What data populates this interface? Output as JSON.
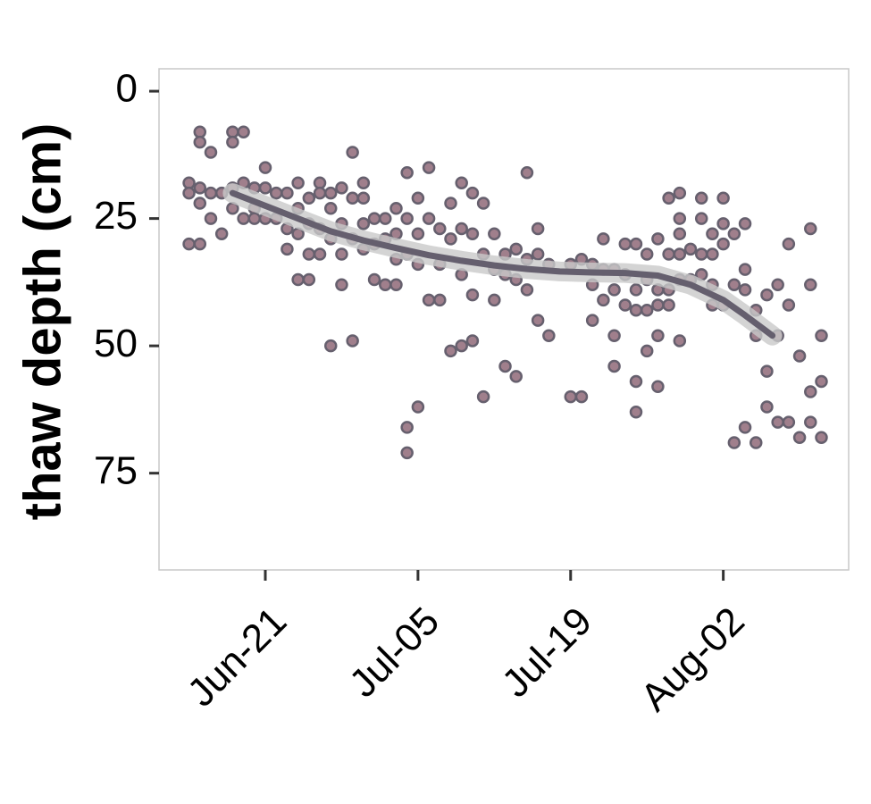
{
  "chart_data": {
    "type": "scatter",
    "y_label": "thaw depth (cm)",
    "xlim": [
      162.25,
      225.5
    ],
    "xticks": [
      {
        "value": 172,
        "label": "Jun-21"
      },
      {
        "value": 186,
        "label": "Jul-05"
      },
      {
        "value": 200,
        "label": "Jul-19"
      },
      {
        "value": 214,
        "label": "Aug-02"
      }
    ],
    "ylim": [
      -4.4,
      94
    ],
    "y_reversed": true,
    "yticks": [
      0,
      25,
      50,
      75
    ],
    "grid": false,
    "color": "#a07f8c",
    "edge_color": "#66606e",
    "x": [
      165,
      165,
      165,
      166,
      166,
      166,
      166,
      166,
      167,
      167,
      167,
      168,
      168,
      169,
      169,
      169,
      169,
      170,
      170,
      170,
      171,
      171,
      171,
      172,
      172,
      172,
      173,
      173,
      174,
      174,
      174,
      175,
      175,
      175,
      175,
      176,
      176,
      176,
      176,
      177,
      177,
      177,
      177,
      178,
      178,
      178,
      178,
      179,
      179,
      179,
      179,
      180,
      180,
      180,
      180,
      181,
      181,
      181,
      181,
      182,
      182,
      182,
      183,
      183,
      183,
      184,
      184,
      184,
      184,
      185,
      185,
      185,
      185,
      185,
      186,
      186,
      186,
      186,
      187,
      187,
      187,
      188,
      188,
      188,
      189,
      189,
      189,
      190,
      190,
      190,
      190,
      191,
      191,
      191,
      191,
      192,
      192,
      192,
      193,
      193,
      193,
      194,
      194,
      194,
      195,
      195,
      195,
      196,
      196,
      196,
      197,
      197,
      197,
      198,
      198,
      200,
      200,
      201,
      201,
      202,
      202,
      202,
      203,
      203,
      203,
      204,
      204,
      204,
      204,
      205,
      205,
      205,
      206,
      206,
      206,
      206,
      206,
      207,
      207,
      207,
      207,
      208,
      208,
      208,
      208,
      208,
      209,
      209,
      209,
      209,
      210,
      210,
      210,
      210,
      210,
      210,
      211,
      211,
      212,
      212,
      212,
      212,
      213,
      213,
      213,
      213,
      214,
      214,
      214,
      214,
      215,
      215,
      215,
      216,
      216,
      216,
      216,
      217,
      217,
      217,
      218,
      218,
      218,
      219,
      219,
      219,
      220,
      220,
      220,
      221,
      221,
      222,
      222,
      222,
      222,
      223,
      223,
      223
    ],
    "values": [
      18,
      20,
      30,
      8,
      10,
      19,
      22,
      30,
      12,
      20,
      25,
      20,
      28,
      8,
      10,
      19,
      23,
      8,
      18,
      25,
      19,
      23,
      25,
      15,
      19,
      25,
      20,
      25,
      20,
      27,
      31,
      18,
      23,
      28,
      37,
      21,
      26,
      32,
      37,
      18,
      20,
      27,
      32,
      20,
      23,
      29,
      50,
      19,
      26,
      32,
      38,
      12,
      21,
      29,
      49,
      18,
      21,
      26,
      31,
      25,
      30,
      37,
      25,
      29,
      38,
      23,
      28,
      33,
      38,
      16,
      25,
      32,
      66,
      71,
      21,
      28,
      34,
      62,
      15,
      25,
      41,
      27,
      34,
      41,
      22,
      29,
      51,
      18,
      27,
      36,
      50,
      20,
      28,
      40,
      49,
      22,
      32,
      60,
      28,
      35,
      41,
      32,
      36,
      54,
      31,
      37,
      56,
      16,
      33,
      39,
      27,
      32,
      45,
      34,
      48,
      34,
      60,
      33,
      60,
      34,
      38,
      45,
      29,
      35,
      41,
      35,
      39,
      48,
      54,
      30,
      36,
      42,
      30,
      39,
      43,
      57,
      63,
      32,
      37,
      43,
      51,
      29,
      39,
      42,
      48,
      58,
      21,
      32,
      39,
      42,
      20,
      25,
      28,
      32,
      37,
      49,
      31,
      37,
      21,
      25,
      32,
      36,
      28,
      32,
      38,
      42,
      21,
      26,
      30,
      42,
      28,
      38,
      69,
      26,
      35,
      39,
      66,
      43,
      48,
      69,
      40,
      55,
      62,
      38,
      48,
      65,
      30,
      42,
      65,
      52,
      68,
      27,
      38,
      59,
      65,
      48,
      57,
      68
    ],
    "trend": {
      "color": "#655f6e",
      "x": [
        169,
        172,
        175,
        178,
        181,
        184,
        187,
        190,
        193,
        196,
        199,
        202,
        205,
        208,
        211,
        214,
        216,
        218.5
      ],
      "values": [
        20,
        22.5,
        25,
        27.5,
        29.3,
        30.8,
        32.2,
        33.3,
        34.2,
        34.9,
        35.4,
        35.6,
        35.7,
        36.2,
        38,
        41,
        44,
        48
      ]
    }
  }
}
